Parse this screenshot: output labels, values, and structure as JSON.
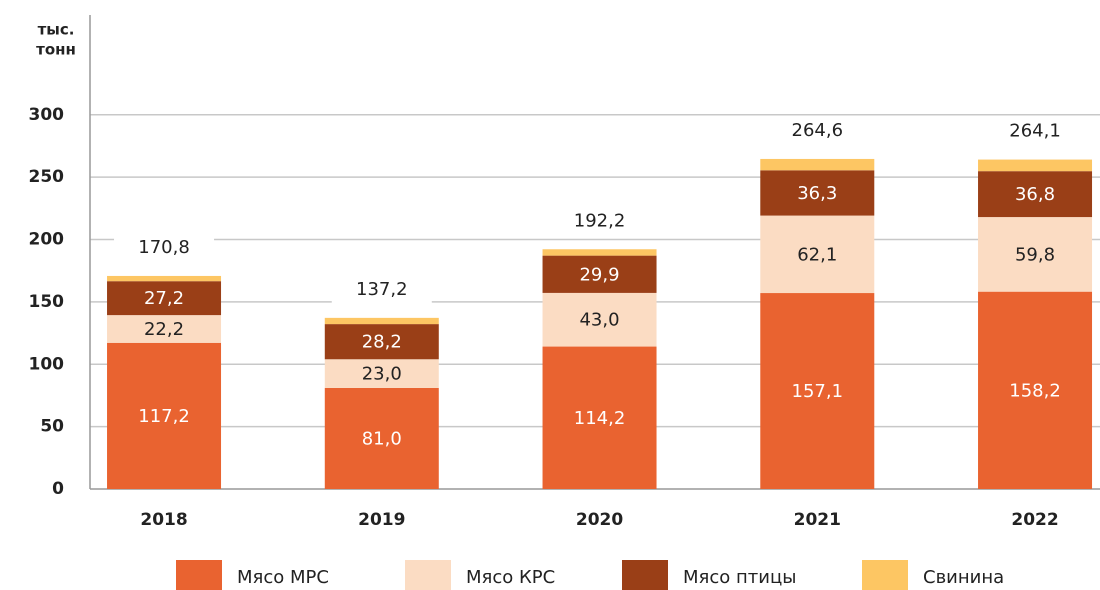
{
  "chart_data": {
    "type": "stacked-bar",
    "y_label": [
      "тыс.",
      "тонн"
    ],
    "categories": [
      "2018",
      "2019",
      "2020",
      "2021",
      "2022"
    ],
    "series": [
      {
        "name": "Мясо МРС",
        "color": "#e96330",
        "values": [
          117.2,
          81.0,
          114.2,
          157.1,
          158.2
        ],
        "value_labels": [
          "117,2",
          "81,0",
          "114,2",
          "157,1",
          "158,2"
        ]
      },
      {
        "name": "Мясо КРС",
        "color": "#fbdcc3",
        "values": [
          22.2,
          23.0,
          43.0,
          62.1,
          59.8
        ],
        "value_labels": [
          "22,2",
          "23,0",
          "43,0",
          "62,1",
          "59,8"
        ]
      },
      {
        "name": "Мясо птицы",
        "color": "#9a3f17",
        "values": [
          27.2,
          28.2,
          29.9,
          36.3,
          36.8
        ],
        "value_labels": [
          "27,2",
          "28,2",
          "29,9",
          "36,3",
          "36,8"
        ]
      },
      {
        "name": "Свинина",
        "color": "#fdc663",
        "values": [
          4.2,
          5.0,
          5.1,
          9.1,
          9.3
        ]
      }
    ],
    "totals": [
      170.8,
      137.2,
      192.2,
      264.6,
      264.1
    ],
    "total_labels": [
      "170,8",
      "137,2",
      "192,2",
      "264,6",
      "264,1"
    ],
    "ylim": [
      0,
      380
    ],
    "yticks": [
      0,
      50,
      100,
      150,
      200,
      250,
      300
    ],
    "grid": true,
    "legend": "bottom"
  }
}
